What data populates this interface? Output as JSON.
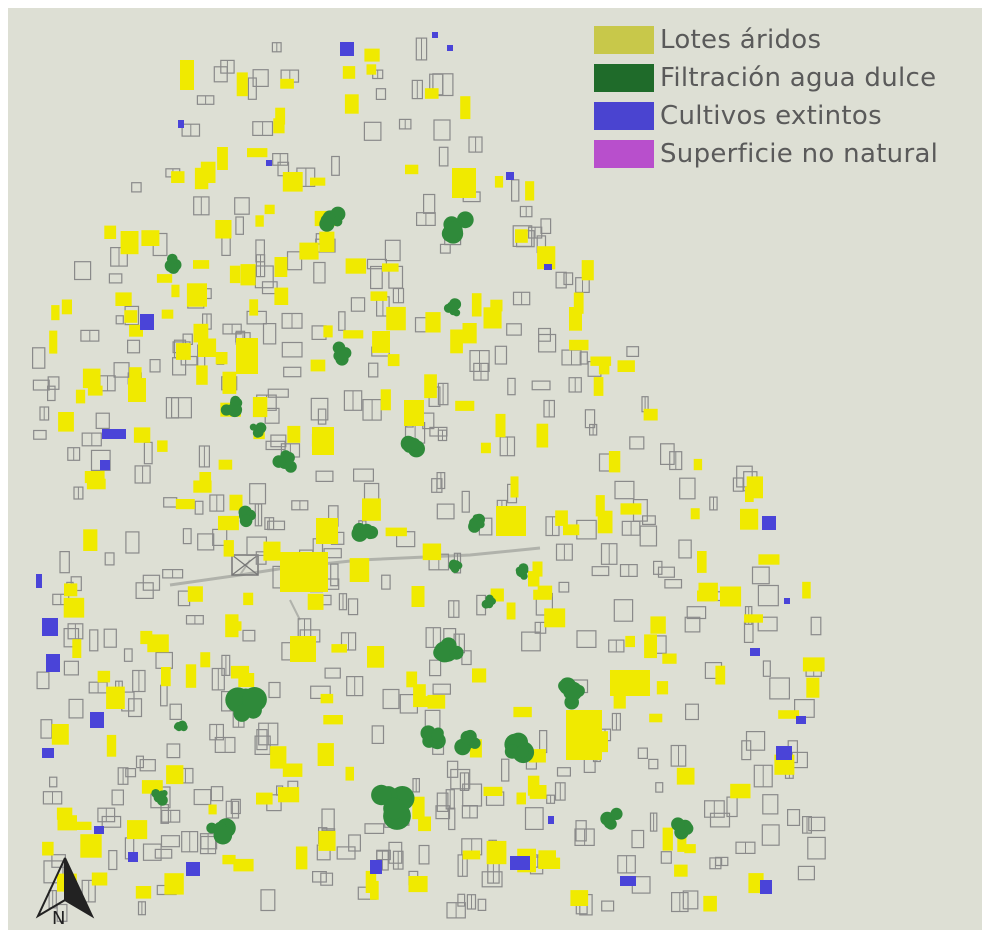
{
  "map": {
    "background": "#dddfd4",
    "outline": "#8a8a8a",
    "colors": {
      "arid": "#f0ea00",
      "freshwater": "#2f8a3a",
      "extinct": "#4a44d8",
      "artificial": "#c040d0",
      "road": "#b0b2ab"
    }
  },
  "legend": {
    "items": [
      {
        "label": "Lotes áridos",
        "color": "#c8c84a"
      },
      {
        "label": "Filtración agua dulce",
        "color": "#1f6b2a"
      },
      {
        "label": "Cultivos extintos",
        "color": "#4a44d0"
      },
      {
        "label": "Superficie no natural",
        "color": "#b84fcc"
      }
    ]
  },
  "north_arrow": {
    "label": "N",
    "icon": "north-arrow-icon"
  }
}
